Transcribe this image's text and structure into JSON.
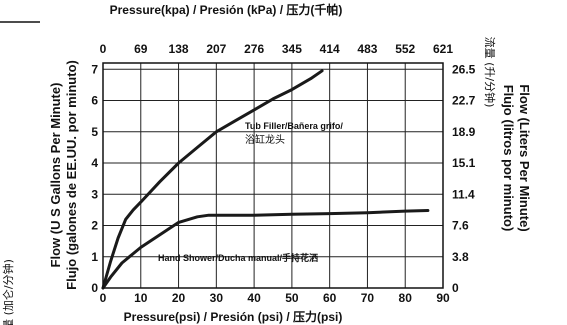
{
  "chart_data": {
    "type": "line",
    "x_top_title": "Pressure(kpa) / Presión (kPa) / 压力(千帕)",
    "x_bottom_title": "Pressure(psi) / Presión (psi) / 压力(psi)",
    "y_left_title_line1": "Flow (U S  Gallons Per Minute)",
    "y_left_title_line2": "Flujo (galones de EE.UU. por minuto)",
    "y_left_title_line3": "流量 (加仑/分钟)",
    "y_right_title_line1": "Flow (Liters Per Minute)",
    "y_right_title_line2": "Flujo (litros por minuto)",
    "y_right_title_line3": "流量 (升/分钟)",
    "x_ticks": [
      "0",
      "10",
      "20",
      "30",
      "40",
      "50",
      "60",
      "70",
      "80",
      "90"
    ],
    "x_ticks_top": [
      "0",
      "69",
      "138",
      "207",
      "276",
      "345",
      "414",
      "483",
      "552",
      "621"
    ],
    "y_ticks_left": [
      "0",
      "1",
      "2",
      "3",
      "4",
      "5",
      "6",
      "7"
    ],
    "y_ticks_right": [
      "0",
      "3.8",
      "7.6",
      "11.4",
      "15.1",
      "18.9",
      "22.7",
      "26.5"
    ],
    "xlim": [
      0,
      90
    ],
    "ylim": [
      0,
      7.2
    ],
    "grid": true,
    "series": [
      {
        "name_line1": "Tub Filler/Bañera grifo/",
        "name_line2": "浴缸龙头",
        "x": [
          0,
          2,
          4,
          6,
          8,
          10,
          15,
          20,
          25,
          30,
          35,
          40,
          45,
          50,
          55,
          58
        ],
        "y": [
          0,
          0.85,
          1.6,
          2.2,
          2.5,
          2.75,
          3.4,
          4.0,
          4.5,
          5.0,
          5.35,
          5.7,
          6.05,
          6.35,
          6.7,
          6.95
        ]
      },
      {
        "name": "Hand Shower/Ducha manual/手持花洒",
        "x": [
          0,
          2,
          5,
          8,
          10,
          15,
          20,
          25,
          28,
          30,
          40,
          50,
          60,
          70,
          80,
          86
        ],
        "y": [
          0,
          0.35,
          0.8,
          1.1,
          1.3,
          1.7,
          2.1,
          2.28,
          2.33,
          2.33,
          2.33,
          2.36,
          2.38,
          2.41,
          2.46,
          2.48
        ]
      }
    ]
  }
}
